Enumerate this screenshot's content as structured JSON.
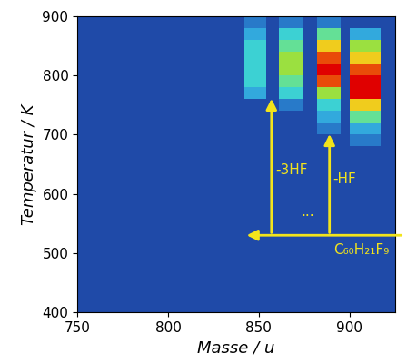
{
  "chart_data": {
    "type": "heatmap",
    "xlabel": "Masse / u",
    "ylabel": "Temperatur / K",
    "xlim": [
      750,
      925
    ],
    "xticks": [
      750,
      800,
      850,
      900
    ],
    "ylim": [
      400,
      900
    ],
    "yticks": [
      400,
      500,
      600,
      700,
      800,
      900
    ],
    "annotations": {
      "parent": "C₆₀H₂₁F₉",
      "loss_1": "-HF",
      "loss_3": "-3HF",
      "ellipsis": "..."
    },
    "cells": {
      "x_edges": [
        750,
        842,
        854,
        861,
        874,
        882,
        895,
        900,
        917,
        925
      ],
      "y_edges": [
        400,
        680,
        700,
        720,
        740,
        760,
        780,
        800,
        820,
        840,
        860,
        880,
        900
      ],
      "zlim": [
        0,
        10
      ],
      "values": [
        [
          0,
          0,
          0,
          0,
          0,
          0,
          0,
          0,
          0
        ],
        [
          0,
          0,
          0,
          0,
          0,
          0,
          0,
          1,
          0
        ],
        [
          0,
          0,
          0,
          0,
          0,
          1,
          0,
          2,
          0
        ],
        [
          0,
          0,
          0,
          0,
          0,
          2,
          0,
          4,
          0
        ],
        [
          0,
          0,
          0,
          1,
          0,
          3,
          0,
          7,
          0
        ],
        [
          0,
          2,
          0,
          3,
          0,
          5,
          0,
          10,
          0
        ],
        [
          0,
          3,
          0,
          4,
          0,
          9,
          0,
          10,
          0
        ],
        [
          0,
          3,
          0,
          5,
          0,
          10,
          0,
          9,
          0
        ],
        [
          0,
          3,
          0,
          5,
          0,
          9,
          0,
          7,
          0
        ],
        [
          0,
          3,
          0,
          4,
          0,
          7,
          0,
          5,
          0
        ],
        [
          0,
          2,
          0,
          3,
          0,
          4,
          0,
          2,
          0
        ],
        [
          0,
          1,
          0,
          1,
          0,
          1,
          0,
          0,
          0
        ]
      ]
    }
  }
}
